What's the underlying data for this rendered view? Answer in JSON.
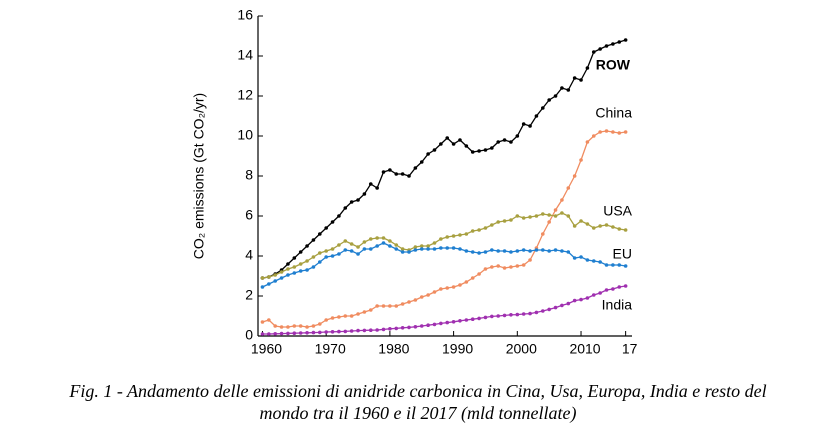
{
  "chart_data": {
    "type": "line",
    "ylabel": "CO₂ emissions (Gt CO₂/yr)",
    "caption": [
      "Fig. 1 - Andamento delle emissioni di anidride carbonica in Cina, Usa, Europa, India e resto del",
      "mondo tra il 1960 e il 2017 (mld tonnellate)"
    ],
    "x": [
      1960,
      1961,
      1962,
      1963,
      1964,
      1965,
      1966,
      1967,
      1968,
      1969,
      1970,
      1971,
      1972,
      1973,
      1974,
      1975,
      1976,
      1977,
      1978,
      1979,
      1980,
      1981,
      1982,
      1983,
      1984,
      1985,
      1986,
      1987,
      1988,
      1989,
      1990,
      1991,
      1992,
      1993,
      1994,
      1995,
      1996,
      1997,
      1998,
      1999,
      2000,
      2001,
      2002,
      2003,
      2004,
      2005,
      2006,
      2007,
      2008,
      2009,
      2010,
      2011,
      2012,
      2013,
      2014,
      2015,
      2016,
      2017
    ],
    "xlim": [
      1959.3,
      2018
    ],
    "xticks": [
      1960,
      1970,
      1980,
      1990,
      2000,
      2010,
      {
        "value": 2017,
        "label": "17"
      }
    ],
    "ylim": [
      0,
      16
    ],
    "yticks": [
      0,
      2,
      4,
      6,
      8,
      10,
      12,
      14,
      16
    ],
    "series": [
      {
        "name": "ROW",
        "color": "#000000",
        "values": [
          2.9,
          2.95,
          3.1,
          3.3,
          3.6,
          3.9,
          4.2,
          4.5,
          4.8,
          5.1,
          5.4,
          5.7,
          6.0,
          6.4,
          6.7,
          6.8,
          7.1,
          7.6,
          7.4,
          8.2,
          8.3,
          8.1,
          8.1,
          8.0,
          8.4,
          8.7,
          9.1,
          9.3,
          9.6,
          9.9,
          9.6,
          9.8,
          9.5,
          9.2,
          9.25,
          9.3,
          9.4,
          9.7,
          9.8,
          9.7,
          10.0,
          10.6,
          10.5,
          11.0,
          11.4,
          11.8,
          12.0,
          12.4,
          12.3,
          12.9,
          12.8,
          13.4,
          14.2,
          14.35,
          14.5,
          14.6,
          14.7,
          14.8
        ]
      },
      {
        "name": "China",
        "color": "#f08c60",
        "values": [
          0.7,
          0.8,
          0.5,
          0.45,
          0.45,
          0.5,
          0.5,
          0.45,
          0.5,
          0.6,
          0.8,
          0.9,
          0.95,
          1.0,
          1.0,
          1.1,
          1.2,
          1.3,
          1.5,
          1.5,
          1.5,
          1.5,
          1.6,
          1.7,
          1.8,
          1.95,
          2.05,
          2.2,
          2.35,
          2.4,
          2.45,
          2.55,
          2.7,
          2.9,
          3.1,
          3.35,
          3.45,
          3.5,
          3.4,
          3.45,
          3.5,
          3.55,
          3.8,
          4.4,
          5.1,
          5.7,
          6.3,
          6.8,
          7.4,
          8.0,
          8.8,
          9.7,
          10.0,
          10.2,
          10.25,
          10.2,
          10.15,
          10.2
        ]
      },
      {
        "name": "USA",
        "color": "#a8a040",
        "values": [
          2.9,
          2.95,
          3.05,
          3.2,
          3.35,
          3.45,
          3.6,
          3.75,
          3.95,
          4.15,
          4.25,
          4.35,
          4.55,
          4.75,
          4.6,
          4.45,
          4.7,
          4.85,
          4.9,
          4.9,
          4.75,
          4.55,
          4.35,
          4.3,
          4.45,
          4.5,
          4.5,
          4.65,
          4.85,
          4.95,
          5.0,
          5.05,
          5.1,
          5.25,
          5.3,
          5.4,
          5.55,
          5.7,
          5.75,
          5.8,
          6.0,
          5.9,
          5.95,
          6.0,
          6.1,
          6.05,
          6.0,
          6.15,
          6.0,
          5.5,
          5.75,
          5.6,
          5.4,
          5.5,
          5.55,
          5.45,
          5.35,
          5.3
        ]
      },
      {
        "name": "EU",
        "color": "#1f7fd0",
        "values": [
          2.45,
          2.6,
          2.75,
          2.9,
          3.05,
          3.15,
          3.25,
          3.3,
          3.45,
          3.7,
          3.95,
          4.0,
          4.1,
          4.3,
          4.25,
          4.1,
          4.35,
          4.35,
          4.5,
          4.65,
          4.5,
          4.35,
          4.2,
          4.2,
          4.3,
          4.35,
          4.35,
          4.35,
          4.4,
          4.4,
          4.4,
          4.35,
          4.25,
          4.2,
          4.15,
          4.2,
          4.3,
          4.25,
          4.25,
          4.2,
          4.25,
          4.3,
          4.25,
          4.3,
          4.3,
          4.25,
          4.3,
          4.25,
          4.2,
          3.9,
          3.95,
          3.8,
          3.75,
          3.7,
          3.55,
          3.55,
          3.55,
          3.5
        ]
      },
      {
        "name": "India",
        "color": "#a030b0",
        "values": [
          0.1,
          0.1,
          0.11,
          0.12,
          0.13,
          0.14,
          0.15,
          0.16,
          0.17,
          0.18,
          0.2,
          0.21,
          0.22,
          0.23,
          0.25,
          0.27,
          0.28,
          0.29,
          0.3,
          0.33,
          0.36,
          0.38,
          0.41,
          0.43,
          0.46,
          0.5,
          0.54,
          0.58,
          0.63,
          0.67,
          0.71,
          0.76,
          0.8,
          0.84,
          0.88,
          0.93,
          0.98,
          1.0,
          1.03,
          1.06,
          1.07,
          1.1,
          1.12,
          1.18,
          1.25,
          1.33,
          1.42,
          1.53,
          1.62,
          1.77,
          1.82,
          1.9,
          2.05,
          2.15,
          2.3,
          2.35,
          2.45,
          2.5
        ]
      }
    ]
  }
}
